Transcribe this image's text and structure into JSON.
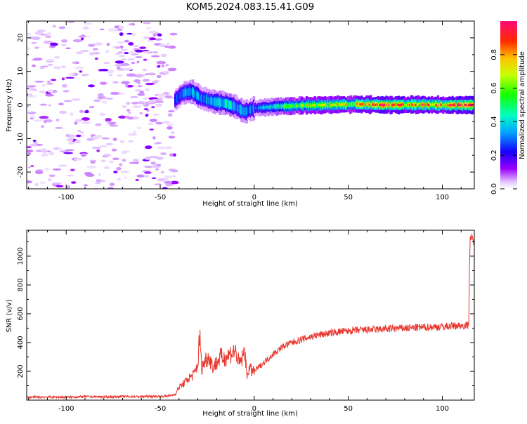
{
  "figure": {
    "title": "KOM5.2024.083.15.41.G09"
  },
  "chart_data": [
    {
      "type": "heatmap",
      "xlabel": "Height of straight line (km)",
      "ylabel": "Frequency (Hz)",
      "xlim": [
        -121,
        117
      ],
      "ylim": [
        -25,
        25
      ],
      "xticks": [
        -100,
        -50,
        0,
        50,
        100
      ],
      "yticks": [
        -20,
        -10,
        0,
        10,
        20
      ],
      "colorbar": {
        "label": "Normalized spectral amplitude",
        "range": [
          0,
          1
        ],
        "ticks": [
          0.0,
          0.2,
          0.4,
          0.6,
          0.8
        ],
        "colormap": "gist_rainbow_r"
      },
      "noise_region_x": [
        -121,
        -42
      ],
      "ridge": [
        {
          "x": -42,
          "y": 1.5,
          "amp": 0.25
        },
        {
          "x": -38,
          "y": 3.5,
          "amp": 0.3
        },
        {
          "x": -33,
          "y": 4.0,
          "amp": 0.35
        },
        {
          "x": -28,
          "y": 2.0,
          "amp": 0.3
        },
        {
          "x": -22,
          "y": 1.0,
          "amp": 0.35
        },
        {
          "x": -15,
          "y": 0.5,
          "amp": 0.4
        },
        {
          "x": -10,
          "y": -0.5,
          "amp": 0.35
        },
        {
          "x": -5,
          "y": -2.0,
          "amp": 0.3
        },
        {
          "x": 0,
          "y": -1.0,
          "amp": 0.3
        },
        {
          "x": 10,
          "y": -0.5,
          "amp": 0.45
        },
        {
          "x": 25,
          "y": -0.2,
          "amp": 0.6
        },
        {
          "x": 40,
          "y": 0.0,
          "amp": 0.65
        },
        {
          "x": 55,
          "y": 0.2,
          "amp": 0.7
        },
        {
          "x": 70,
          "y": 0.0,
          "amp": 0.9
        },
        {
          "x": 85,
          "y": 0.1,
          "amp": 0.75
        },
        {
          "x": 100,
          "y": 0.0,
          "amp": 0.8
        },
        {
          "x": 117,
          "y": 0.0,
          "amp": 0.9
        }
      ]
    },
    {
      "type": "line",
      "xlabel": "Height of straight line (km)",
      "ylabel": "SNR (v/v)",
      "xlim": [
        -121,
        117
      ],
      "ylim": [
        0,
        1180
      ],
      "xticks": [
        -100,
        -50,
        0,
        50,
        100
      ],
      "yticks": [
        200,
        400,
        600,
        800,
        1000
      ],
      "series": [
        {
          "color": "#e8372e",
          "x": [
            -121,
            -110,
            -100,
            -90,
            -80,
            -70,
            -60,
            -50,
            -45,
            -42,
            -40,
            -38,
            -35,
            -32,
            -30,
            -29,
            -28,
            -26,
            -24,
            -22,
            -20,
            -18,
            -16,
            -14,
            -12,
            -10,
            -8,
            -6,
            -5,
            -4,
            -3,
            -2,
            0,
            5,
            10,
            15,
            20,
            25,
            30,
            35,
            40,
            45,
            50,
            55,
            60,
            65,
            70,
            75,
            80,
            85,
            90,
            95,
            100,
            105,
            110,
            113,
            114,
            114.5,
            115,
            116,
            117
          ],
          "y": [
            20,
            22,
            20,
            24,
            22,
            25,
            24,
            26,
            30,
            40,
            90,
            110,
            150,
            180,
            250,
            460,
            220,
            280,
            300,
            230,
            260,
            300,
            290,
            310,
            330,
            340,
            250,
            300,
            360,
            160,
            220,
            210,
            200,
            260,
            320,
            370,
            400,
            420,
            440,
            455,
            465,
            475,
            480,
            485,
            488,
            490,
            495,
            498,
            500,
            503,
            505,
            508,
            510,
            515,
            518,
            520,
            520,
            1000,
            1150,
            1100,
            1080
          ]
        }
      ]
    }
  ]
}
